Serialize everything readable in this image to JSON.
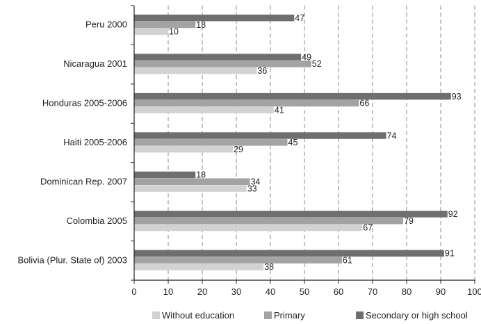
{
  "chart_data": {
    "type": "bar",
    "orientation": "horizontal",
    "categories": [
      "Peru 2000",
      "Nicaragua 2001",
      "Honduras 2005-2006",
      "Haiti 2005-2006",
      "Dominican Rep. 2007",
      "Colombia 2005",
      "Bolivia (Plur. State of) 2003"
    ],
    "series": [
      {
        "name": "Secondary or high school",
        "color": "#6f6f6f",
        "values": [
          47,
          49,
          93,
          74,
          18,
          92,
          91
        ]
      },
      {
        "name": "Primary",
        "color": "#a3a3a3",
        "values": [
          18,
          52,
          66,
          45,
          34,
          79,
          61
        ]
      },
      {
        "name": "Without education",
        "color": "#d2d2d2",
        "values": [
          10,
          36,
          41,
          29,
          33,
          67,
          38
        ]
      }
    ],
    "legend_order": [
      "Without education",
      "Primary",
      "Secondary or high school"
    ],
    "xlim": [
      0,
      100
    ],
    "xticks": [
      0,
      10,
      20,
      30,
      40,
      50,
      60,
      70,
      80,
      90,
      100
    ],
    "title": "",
    "xlabel": "",
    "ylabel": "",
    "grid": "vertical dashed",
    "legend_position": "bottom",
    "data_labels": true
  }
}
